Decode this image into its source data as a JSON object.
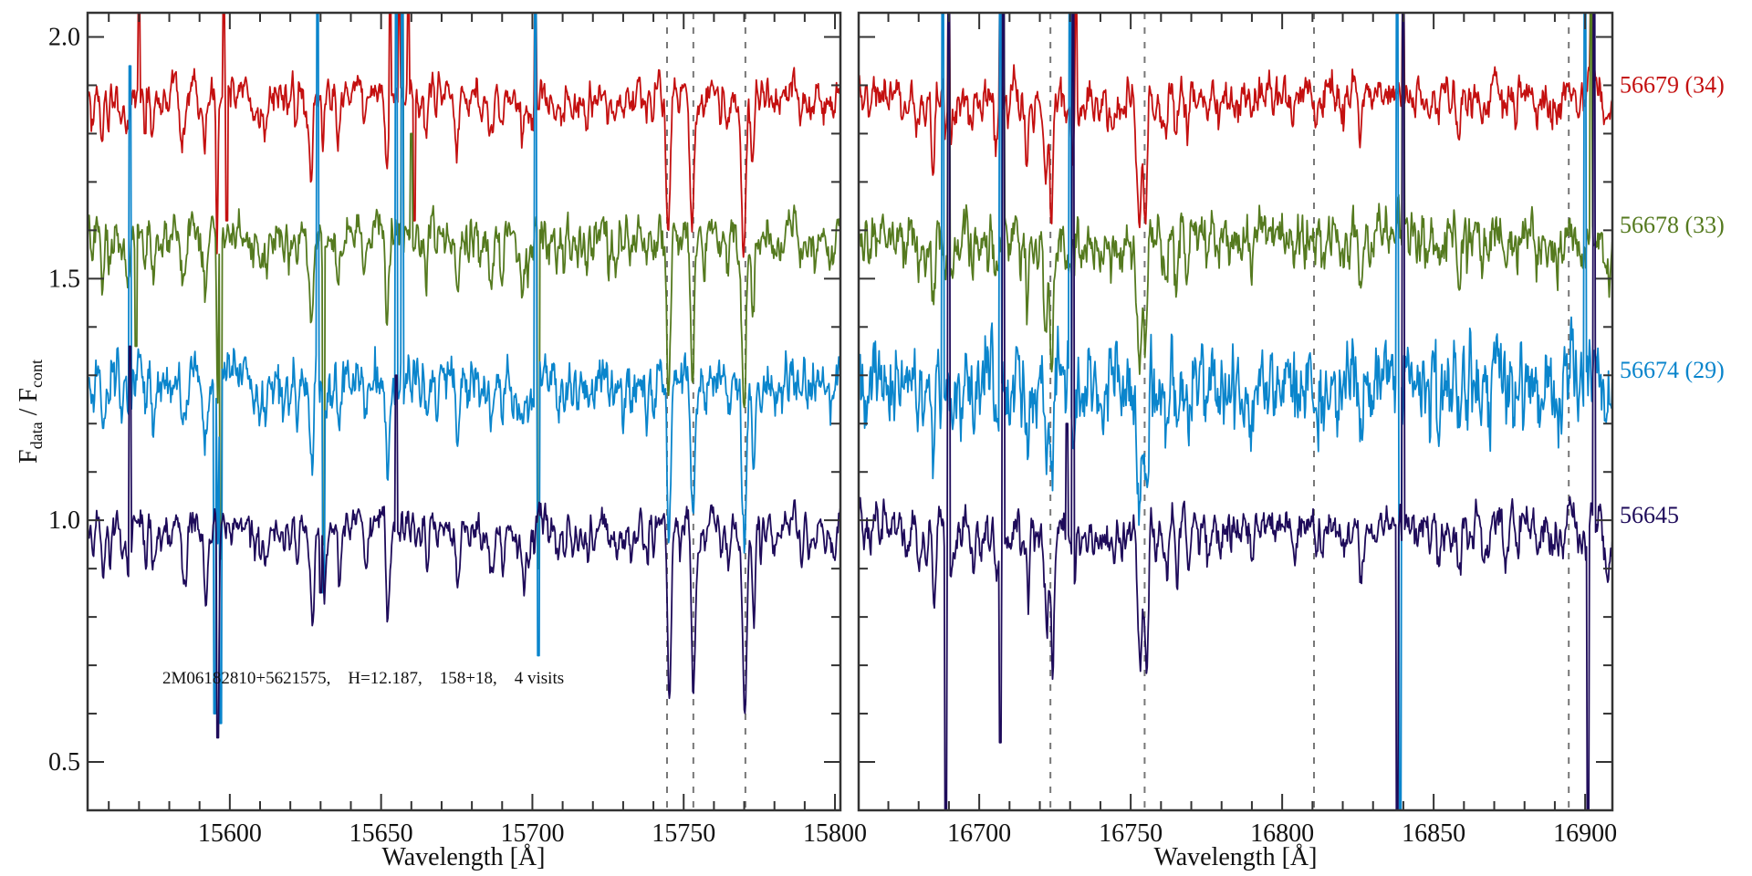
{
  "chart_data": {
    "type": "line",
    "title": "",
    "xlabel": "Wavelength [Å]",
    "ylabel": {
      "main": "F",
      "sub1": "data",
      "sep": " / F",
      "sub2": "cont"
    },
    "ylim": [
      0.4,
      2.05
    ],
    "yticks_major": [
      0.5,
      1.0,
      1.5,
      2.0
    ],
    "ytick_labels": [
      "0.5",
      "1.0",
      "1.5",
      "2.0"
    ],
    "ytick_minor_step": 0.1,
    "annotation": "2M06182810+5621575,    H=12.187,    158+18,    4 visits",
    "grid": false,
    "panels": [
      {
        "xlim": [
          15553,
          15801.8
        ],
        "xticks_major": [
          15600,
          15650,
          15700,
          15750,
          15800
        ],
        "xtick_labels": [
          "15600",
          "15650",
          "15700",
          "15750",
          "15800"
        ],
        "xtick_minor_step": 10,
        "reference_lines": [
          15744.5,
          15753.2,
          15770.4
        ],
        "absorption_lines": [
          [
            15558,
            0.1,
            0.5
          ],
          [
            15566,
            0.06,
            0.5
          ],
          [
            15575,
            0.08,
            0.6
          ],
          [
            15585,
            0.1,
            0.5
          ],
          [
            15592,
            0.15,
            0.6
          ],
          [
            15596,
            0.4,
            0.3
          ],
          [
            15610,
            0.05,
            0.5
          ],
          [
            15627,
            0.2,
            0.6
          ],
          [
            15631,
            0.1,
            0.4
          ],
          [
            15636,
            0.15,
            0.5
          ],
          [
            15645,
            0.06,
            0.5
          ],
          [
            15652,
            0.12,
            0.5
          ],
          [
            15665,
            0.1,
            0.5
          ],
          [
            15675,
            0.08,
            0.5
          ],
          [
            15686,
            0.06,
            0.5
          ],
          [
            15697,
            0.14,
            0.5
          ],
          [
            15718,
            0.08,
            0.5
          ],
          [
            15728,
            0.06,
            0.5
          ],
          [
            15740,
            0.05,
            0.5
          ],
          [
            15745,
            0.29,
            0.6
          ],
          [
            15753,
            0.32,
            0.6
          ],
          [
            15770,
            0.38,
            0.7
          ],
          [
            15773,
            0.2,
            0.5
          ],
          [
            15780,
            0.05,
            0.5
          ],
          [
            15792,
            0.04,
            0.5
          ]
        ]
      },
      {
        "xlim": [
          16660.2,
          16909
        ],
        "xticks_major": [
          16700,
          16750,
          16800,
          16850,
          16900
        ],
        "xtick_labels": [
          "16700",
          "16750",
          "16800",
          "16850",
          "16900"
        ],
        "xtick_minor_step": 10,
        "reference_lines": [
          16723.5,
          16754.6,
          16810.5,
          16894.6
        ],
        "absorption_lines": [
          [
            16670,
            0.06,
            0.5
          ],
          [
            16680,
            0.1,
            0.5
          ],
          [
            16685,
            0.18,
            0.6
          ],
          [
            16691,
            0.1,
            0.5
          ],
          [
            16698,
            0.05,
            0.5
          ],
          [
            16706,
            0.1,
            0.5
          ],
          [
            16716,
            0.1,
            0.5
          ],
          [
            16722,
            0.2,
            0.6
          ],
          [
            16724,
            0.3,
            0.5
          ],
          [
            16731,
            0.15,
            0.5
          ],
          [
            16740,
            0.06,
            0.5
          ],
          [
            16753,
            0.25,
            0.8
          ],
          [
            16755,
            0.3,
            0.5
          ],
          [
            16762,
            0.1,
            0.5
          ],
          [
            16765,
            0.12,
            0.5
          ],
          [
            16769,
            0.1,
            0.5
          ],
          [
            16790,
            0.05,
            0.5
          ],
          [
            16826,
            0.06,
            0.5
          ],
          [
            16858,
            0.05,
            0.5
          ],
          [
            16888,
            0.06,
            0.5
          ]
        ]
      }
    ],
    "series": [
      {
        "name": "56679 (34)",
        "color": "#c41010",
        "offset": 1.9,
        "line_scale": 0.85,
        "noise": 0.022,
        "noise_right": 0.025,
        "seed": 11,
        "spikes": [
          [
            [
              15570,
              2.1
            ],
            [
              15572,
              1.8
            ],
            [
              15598,
              2.1
            ],
            [
              15599,
              1.62
            ],
            [
              15653,
              2.1
            ],
            [
              15656,
              2.1
            ],
            [
              15659,
              2.1
            ],
            [
              15661,
              1.62
            ],
            [
              15701,
              2.1
            ],
            [
              15702,
              1.85
            ]
          ],
          [
            [
              16690,
              2.1
            ],
            [
              16707,
              2.1
            ],
            [
              16732,
              2.05
            ],
            [
              16840,
              2.1
            ],
            [
              16902,
              2.1
            ]
          ]
        ]
      },
      {
        "name": "56678 (33)",
        "color": "#557a1f",
        "offset": 1.61,
        "line_scale": 0.9,
        "noise": 0.028,
        "noise_right": 0.035,
        "seed": 23,
        "spikes": [
          [
            [
              15569,
              1.36
            ],
            [
              15597,
              0.92
            ],
            [
              15631,
              0.95
            ],
            [
              15657,
              2.1
            ],
            [
              15660,
              1.8
            ],
            [
              15702,
              0.9
            ]
          ],
          [
            [
              16690,
              2.1
            ],
            [
              16708,
              2.1
            ],
            [
              16731,
              1.58
            ],
            [
              16840,
              2.1
            ],
            [
              16902,
              2.1
            ]
          ]
        ]
      },
      {
        "name": "56674 (29)",
        "color": "#0a85cc",
        "offset": 1.31,
        "line_scale": 0.9,
        "noise": 0.035,
        "noise_right": 0.06,
        "seed": 37,
        "spikes": [
          [
            [
              15567,
              1.94
            ],
            [
              15595,
              0.6
            ],
            [
              15597,
              0.58
            ],
            [
              15629,
              2.1
            ],
            [
              15631,
              0.85
            ],
            [
              15655,
              2.1
            ],
            [
              15657,
              2.1
            ],
            [
              15701,
              2.1
            ],
            [
              15702,
              0.72
            ]
          ],
          [
            [
              16688,
              2.1
            ],
            [
              16707,
              2.1
            ],
            [
              16730,
              2.1
            ],
            [
              16838,
              2.1
            ],
            [
              16839,
              0.4
            ],
            [
              16900,
              2.1
            ]
          ]
        ]
      },
      {
        "name": "56645",
        "color": "#1e0b5a",
        "offset": 1.01,
        "line_scale": 1.0,
        "noise": 0.02,
        "noise_right": 0.025,
        "seed": 51,
        "spikes": [
          [
            [
              15567,
              1.36
            ],
            [
              15596,
              0.55
            ],
            [
              15630,
              0.85
            ],
            [
              15655,
              1.3
            ]
          ],
          [
            [
              16689,
              0.4
            ],
            [
              16690,
              2.1
            ],
            [
              16707,
              0.54
            ],
            [
              16708,
              2.1
            ],
            [
              16729,
              1.2
            ],
            [
              16731,
              2.1
            ],
            [
              16838,
              0.4
            ],
            [
              16840,
              2.1
            ],
            [
              16901,
              0.4
            ],
            [
              16903,
              2.1
            ]
          ]
        ]
      }
    ]
  }
}
